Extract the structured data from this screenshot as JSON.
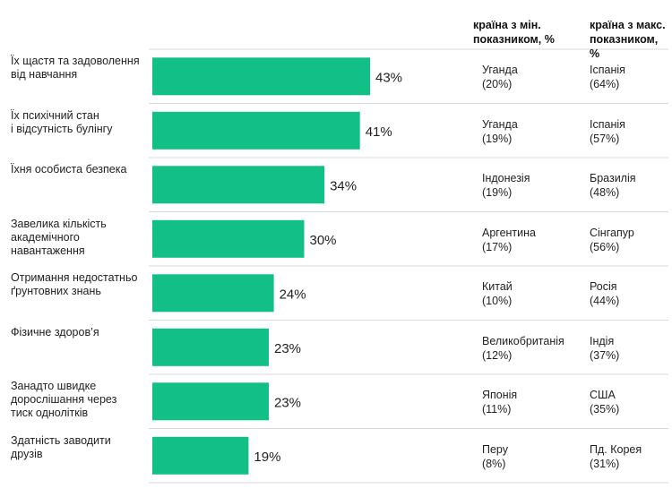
{
  "headers": {
    "min_country": "країна з мін. показником, %",
    "max_country": "країна з макс. показником, %"
  },
  "colors": {
    "bar": "#12c087",
    "divider": "#d9d9d9"
  },
  "chart_data": {
    "type": "bar",
    "orientation": "horizontal",
    "categories": [
      "Їх щастя та задоволення від навчання",
      "Їх психічний стан і відсутність булінгу",
      "Їхня особиста безпека",
      "Завелика кількість академічного навантаження",
      "Отримання недостатньо ґрунтовних знань",
      "Фізичне здоров’я",
      "Занадто швидке дорослішання через тиск однолітків",
      "Здатність заводити друзів"
    ],
    "values": [
      43,
      41,
      34,
      30,
      24,
      23,
      23,
      19
    ],
    "value_labels": [
      "43%",
      "41%",
      "34%",
      "30%",
      "24%",
      "23%",
      "23%",
      "19%"
    ],
    "xlim": [
      0,
      50
    ]
  },
  "rows": [
    {
      "label_lines": [
        "Їх щастя та задоволення",
        "від навчання"
      ],
      "min_country": "Уганда",
      "min_value": "(20%)",
      "max_country": "Іспанія",
      "max_value": "(64%)"
    },
    {
      "label_lines": [
        "Їх психічний стан",
        "і відсутність булінгу"
      ],
      "min_country": "Уганда",
      "min_value": "(19%)",
      "max_country": "Іспанія",
      "max_value": "(57%)"
    },
    {
      "label_lines": [
        "Їхня особиста безпека"
      ],
      "min_country": "Індонезія",
      "min_value": "(19%)",
      "max_country": "Бразилія",
      "max_value": "(48%)"
    },
    {
      "label_lines": [
        "Завелика кількість",
        "академічного",
        "навантаження"
      ],
      "min_country": "Аргентина",
      "min_value": "(17%)",
      "max_country": "Сінгапур",
      "max_value": "(56%)"
    },
    {
      "label_lines": [
        "Отримання недостатньо",
        "ґрунтовних знань"
      ],
      "min_country": "Китай",
      "min_value": "(10%)",
      "max_country": "Росія",
      "max_value": "(44%)"
    },
    {
      "label_lines": [
        "Фізичне здоров’я"
      ],
      "min_country": "Великобританія",
      "min_value": "(12%)",
      "max_country": "Індія",
      "max_value": "(37%)"
    },
    {
      "label_lines": [
        "Занадто швидке",
        "дорослішання через",
        "тиск однолітків"
      ],
      "min_country": "Японія",
      "min_value": "(11%)",
      "max_country": "США",
      "max_value": "(35%)"
    },
    {
      "label_lines": [
        "Здатність заводити друзів"
      ],
      "min_country": "Перу",
      "min_value": "(8%)",
      "max_country": "Пд. Корея",
      "max_value": "(31%)"
    }
  ]
}
